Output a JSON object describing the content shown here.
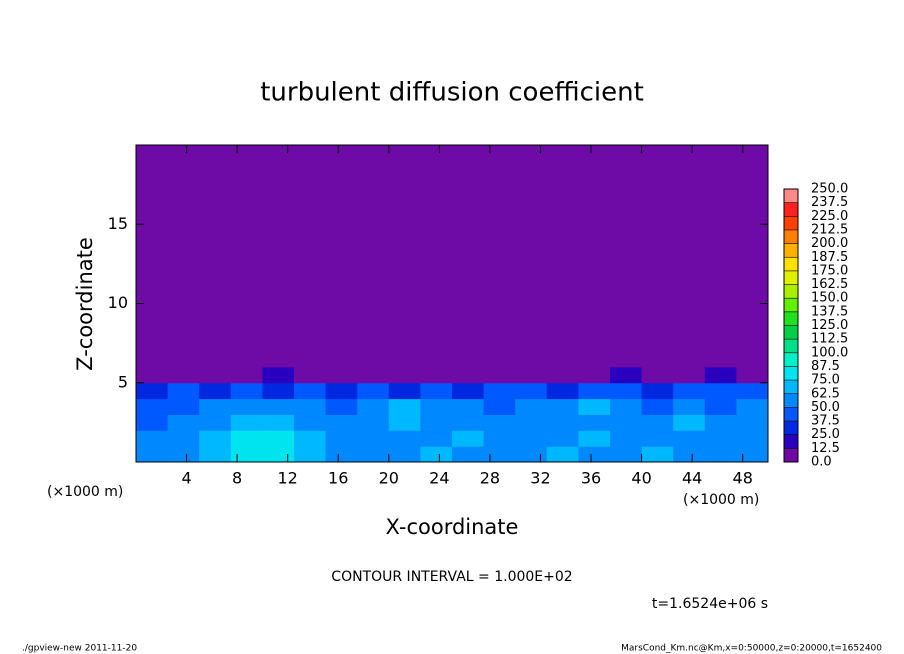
{
  "chart_data": {
    "type": "heatmap",
    "title": "turbulent diffusion coefficient",
    "x_label": "X-coordinate",
    "y_label": "Z-coordinate",
    "y_unit": "(×1000 m)",
    "x_unit": "(×1000 m)",
    "contour_note": "CONTOUR INTERVAL = 1.000E+02",
    "time_note": "t=1.6524e+06 s",
    "footer_left": "./gpview-new   2011-11-20",
    "footer_right": "MarsCond_Km.nc@Km,x=0:50000,z=0:20000,t=1652400",
    "xlim": [
      0,
      50
    ],
    "ylim": [
      0,
      20
    ],
    "xticks": [
      4,
      8,
      12,
      16,
      20,
      24,
      28,
      32,
      36,
      40,
      44,
      48
    ],
    "yticks": [
      5,
      10,
      15
    ],
    "x_edges": [
      0,
      2.5,
      5,
      7.5,
      10,
      12.5,
      15,
      17.5,
      20,
      22.5,
      25,
      27.5,
      30,
      32.5,
      35,
      37.5,
      40,
      42.5,
      45,
      47.5,
      50
    ],
    "z_edges": [
      0,
      1,
      2,
      3,
      4,
      5,
      6,
      20
    ],
    "values": [
      [
        55,
        60,
        65,
        75,
        80,
        70,
        60,
        55,
        60,
        65,
        60,
        55,
        60,
        65,
        55,
        60,
        65,
        55,
        60,
        55
      ],
      [
        50,
        60,
        70,
        80,
        75,
        65,
        55,
        60,
        55,
        60,
        65,
        50,
        55,
        60,
        65,
        55,
        60,
        60,
        55,
        60
      ],
      [
        45,
        55,
        60,
        70,
        65,
        60,
        50,
        60,
        65,
        55,
        60,
        55,
        50,
        60,
        55,
        60,
        55,
        65,
        50,
        55
      ],
      [
        40,
        45,
        50,
        60,
        55,
        50,
        45,
        60,
        70,
        50,
        60,
        45,
        55,
        50,
        65,
        50,
        45,
        55,
        40,
        50
      ],
      [
        35,
        40,
        30,
        40,
        35,
        45,
        30,
        40,
        35,
        40,
        30,
        45,
        40,
        35,
        40,
        45,
        35,
        40,
        45,
        40
      ],
      [
        0,
        0,
        0,
        10,
        15,
        0,
        0,
        5,
        10,
        0,
        0,
        0,
        0,
        0,
        10,
        15,
        5,
        0,
        15,
        0
      ],
      [
        0,
        0,
        0,
        0,
        0,
        0,
        0,
        0,
        0,
        0,
        0,
        0,
        0,
        0,
        0,
        0,
        0,
        0,
        0,
        0
      ]
    ],
    "levels": [
      {
        "value": 0,
        "label": "0.0"
      },
      {
        "value": 12.5,
        "label": "12.5"
      },
      {
        "value": 25,
        "label": "25.0"
      },
      {
        "value": 37.5,
        "label": "37.5"
      },
      {
        "value": 50,
        "label": "50.0"
      },
      {
        "value": 62.5,
        "label": "62.5"
      },
      {
        "value": 75,
        "label": "75.0"
      },
      {
        "value": 87.5,
        "label": "87.5"
      },
      {
        "value": 100,
        "label": "100.0"
      },
      {
        "value": 112.5,
        "label": "112.5"
      },
      {
        "value": 125,
        "label": "125.0"
      },
      {
        "value": 137.5,
        "label": "137.5"
      },
      {
        "value": 150,
        "label": "150.0"
      },
      {
        "value": 162.5,
        "label": "162.5"
      },
      {
        "value": 175,
        "label": "175.0"
      },
      {
        "value": 187.5,
        "label": "187.5"
      },
      {
        "value": 200,
        "label": "200.0"
      },
      {
        "value": 212.5,
        "label": "212.5"
      },
      {
        "value": 225,
        "label": "225.0"
      },
      {
        "value": 237.5,
        "label": "237.5"
      },
      {
        "value": 250,
        "label": "250.0"
      }
    ],
    "colors": [
      "#6e0aa6",
      "#2a00c0",
      "#0028e0",
      "#0058ff",
      "#0088ff",
      "#00b8ff",
      "#00e4f0",
      "#00f0c8",
      "#00e088",
      "#00d048",
      "#20e020",
      "#60f000",
      "#a8f000",
      "#e0f000",
      "#ffe000",
      "#ffb000",
      "#ff8000",
      "#ff4000",
      "#ff2020",
      "#ff8888"
    ]
  }
}
